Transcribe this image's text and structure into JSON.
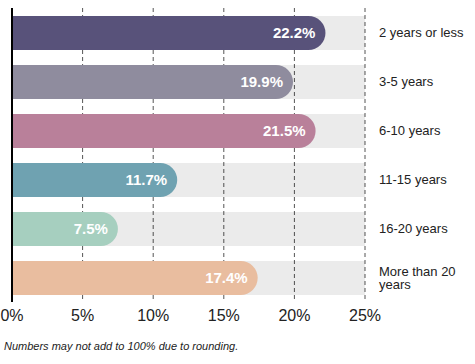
{
  "chart_data": {
    "type": "bar",
    "orientation": "horizontal",
    "categories": [
      "2 years or less",
      "3-5 years",
      "6-10 years",
      "11-15 years",
      "16-20 years",
      "More than 20 years"
    ],
    "values": [
      22.2,
      19.9,
      21.5,
      11.7,
      7.5,
      17.4
    ],
    "value_labels": [
      "22.2%",
      "19.9%",
      "21.5%",
      "11.7%",
      "7.5%",
      "17.4%"
    ],
    "colors": [
      "#58527a",
      "#8f8c9e",
      "#b9809a",
      "#6fa2b1",
      "#a6cfbf",
      "#e9bd9f"
    ],
    "xlim": [
      0,
      25
    ],
    "xticks": [
      {
        "value": 0,
        "label": "0%"
      },
      {
        "value": 5,
        "label": "5%"
      },
      {
        "value": 10,
        "label": "10%"
      },
      {
        "value": 15,
        "label": "15%"
      },
      {
        "value": 20,
        "label": "20%"
      },
      {
        "value": 25,
        "label": "25%"
      }
    ],
    "grid": true,
    "data_labels": true,
    "annotations": [
      "Numbers may not add to 100% due to rounding."
    ]
  }
}
